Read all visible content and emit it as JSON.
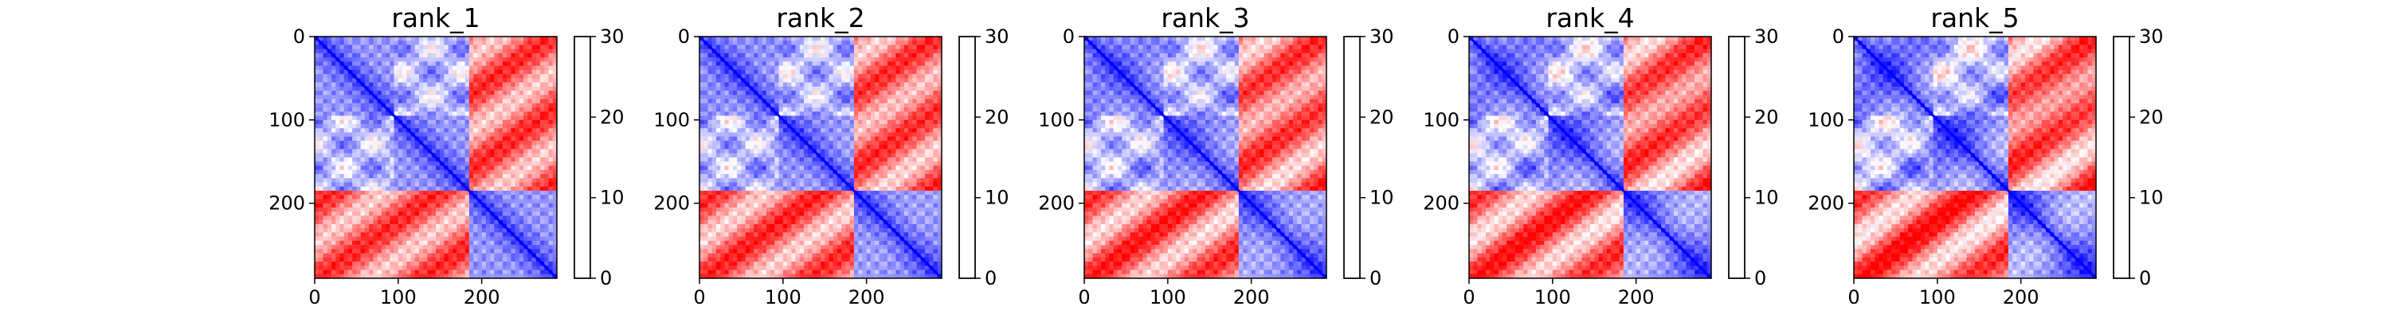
{
  "chart_data": [
    {
      "type": "heatmap",
      "title": "rank_1",
      "xlabel": "",
      "ylabel": "",
      "matrix_size": 290,
      "xticks": [
        0,
        100,
        200
      ],
      "yticks": [
        0,
        100,
        200
      ],
      "colorbar": {
        "colormap": "bwr",
        "vmin": 0,
        "vmax": 30,
        "ticks": [
          0,
          10,
          20,
          30
        ]
      },
      "domains": [
        [
          0,
          95
        ],
        [
          95,
          185
        ],
        [
          185,
          290
        ]
      ],
      "matrix_description": "pairwise distance map: low (blue) within domains and along diagonal, high (red) between first domains and third domain"
    },
    {
      "type": "heatmap",
      "title": "rank_2",
      "xlabel": "",
      "ylabel": "",
      "matrix_size": 290,
      "xticks": [
        0,
        100,
        200
      ],
      "yticks": [
        0,
        100,
        200
      ],
      "colorbar": {
        "colormap": "bwr",
        "vmin": 0,
        "vmax": 30,
        "ticks": [
          0,
          10,
          20,
          30
        ]
      },
      "domains": [
        [
          0,
          95
        ],
        [
          95,
          185
        ],
        [
          185,
          290
        ]
      ]
    },
    {
      "type": "heatmap",
      "title": "rank_3",
      "xlabel": "",
      "ylabel": "",
      "matrix_size": 290,
      "xticks": [
        0,
        100,
        200
      ],
      "yticks": [
        0,
        100,
        200
      ],
      "colorbar": {
        "colormap": "bwr",
        "vmin": 0,
        "vmax": 30,
        "ticks": [
          0,
          10,
          20,
          30
        ]
      },
      "domains": [
        [
          0,
          95
        ],
        [
          95,
          185
        ],
        [
          185,
          290
        ]
      ]
    },
    {
      "type": "heatmap",
      "title": "rank_4",
      "xlabel": "",
      "ylabel": "",
      "matrix_size": 290,
      "xticks": [
        0,
        100,
        200
      ],
      "yticks": [
        0,
        100,
        200
      ],
      "colorbar": {
        "colormap": "bwr",
        "vmin": 0,
        "vmax": 30,
        "ticks": [
          0,
          10,
          20,
          30
        ]
      },
      "domains": [
        [
          0,
          95
        ],
        [
          95,
          185
        ],
        [
          185,
          290
        ]
      ]
    },
    {
      "type": "heatmap",
      "title": "rank_5",
      "xlabel": "",
      "ylabel": "",
      "matrix_size": 290,
      "xticks": [
        0,
        100,
        200
      ],
      "yticks": [
        0,
        100,
        200
      ],
      "colorbar": {
        "colormap": "bwr",
        "vmin": 0,
        "vmax": 30,
        "ticks": [
          0,
          10,
          20,
          30
        ]
      },
      "domains": [
        [
          0,
          95
        ],
        [
          95,
          185
        ],
        [
          185,
          290
        ]
      ]
    }
  ]
}
